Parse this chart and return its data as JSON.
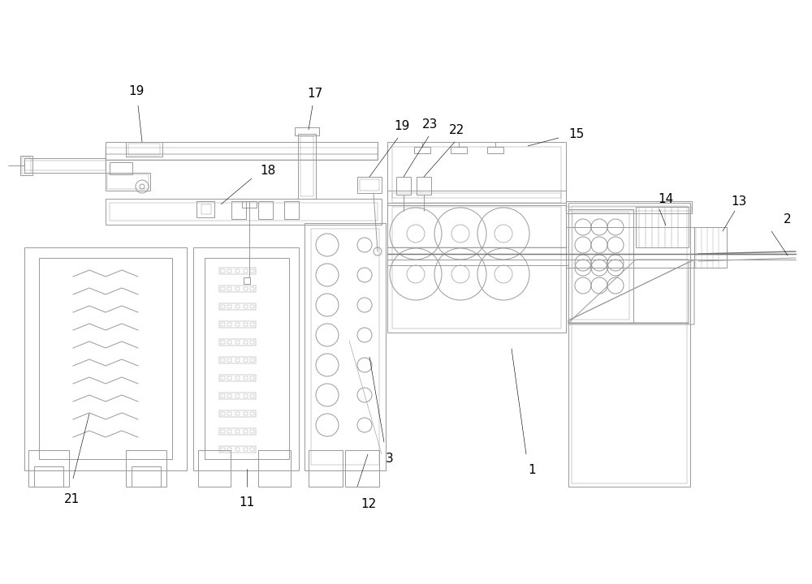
{
  "bg_color": "#ffffff",
  "lc": "#999999",
  "lc2": "#777777",
  "lw": 0.7,
  "figsize": [
    10.0,
    7.2
  ],
  "dpi": 100
}
